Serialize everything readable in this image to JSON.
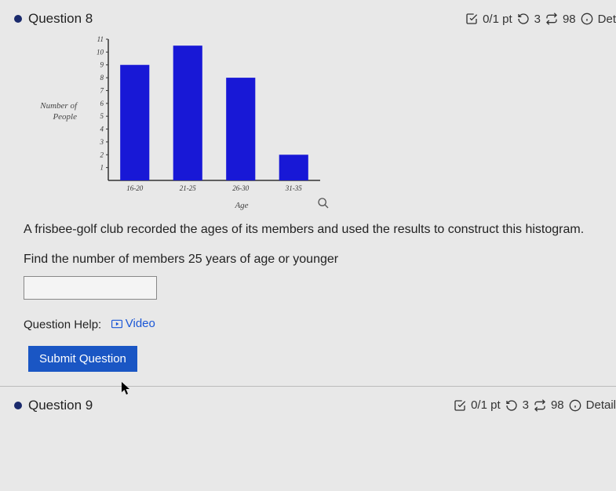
{
  "q8": {
    "title": "Question 8",
    "points": "0/1 pt",
    "retry": "3",
    "repeat": "98",
    "details": "Det",
    "chart": {
      "type": "bar",
      "ylabel_line1": "Number of",
      "ylabel_line2": "People",
      "xlabel": "Age",
      "categories": [
        "16-20",
        "21-25",
        "26-30",
        "31-35"
      ],
      "values": [
        9,
        10.5,
        8,
        2
      ],
      "ylim": [
        0,
        11
      ],
      "yticks": [
        1,
        2,
        3,
        4,
        5,
        6,
        7,
        8,
        9,
        10,
        11
      ],
      "ytick_labels": [
        "1",
        "2",
        "3",
        "4",
        "5",
        "6",
        "7",
        "8",
        "9",
        "10",
        "11"
      ],
      "bar_color": "#1818d6",
      "axis_color": "#333333",
      "background_color": "#e8e8e8",
      "label_fontsize": 9,
      "bar_width": 0.55
    },
    "body": "A frisbee-golf club recorded the ages of its members and used the results to construct this histogram.",
    "prompt": "Find the number of members 25 years of age or younger",
    "help_label": "Question Help:",
    "video_label": "Video",
    "submit_label": "Submit Question"
  },
  "q9": {
    "title": "Question 9",
    "points": "0/1 pt",
    "retry": "3",
    "repeat": "98",
    "details": "Detail"
  }
}
